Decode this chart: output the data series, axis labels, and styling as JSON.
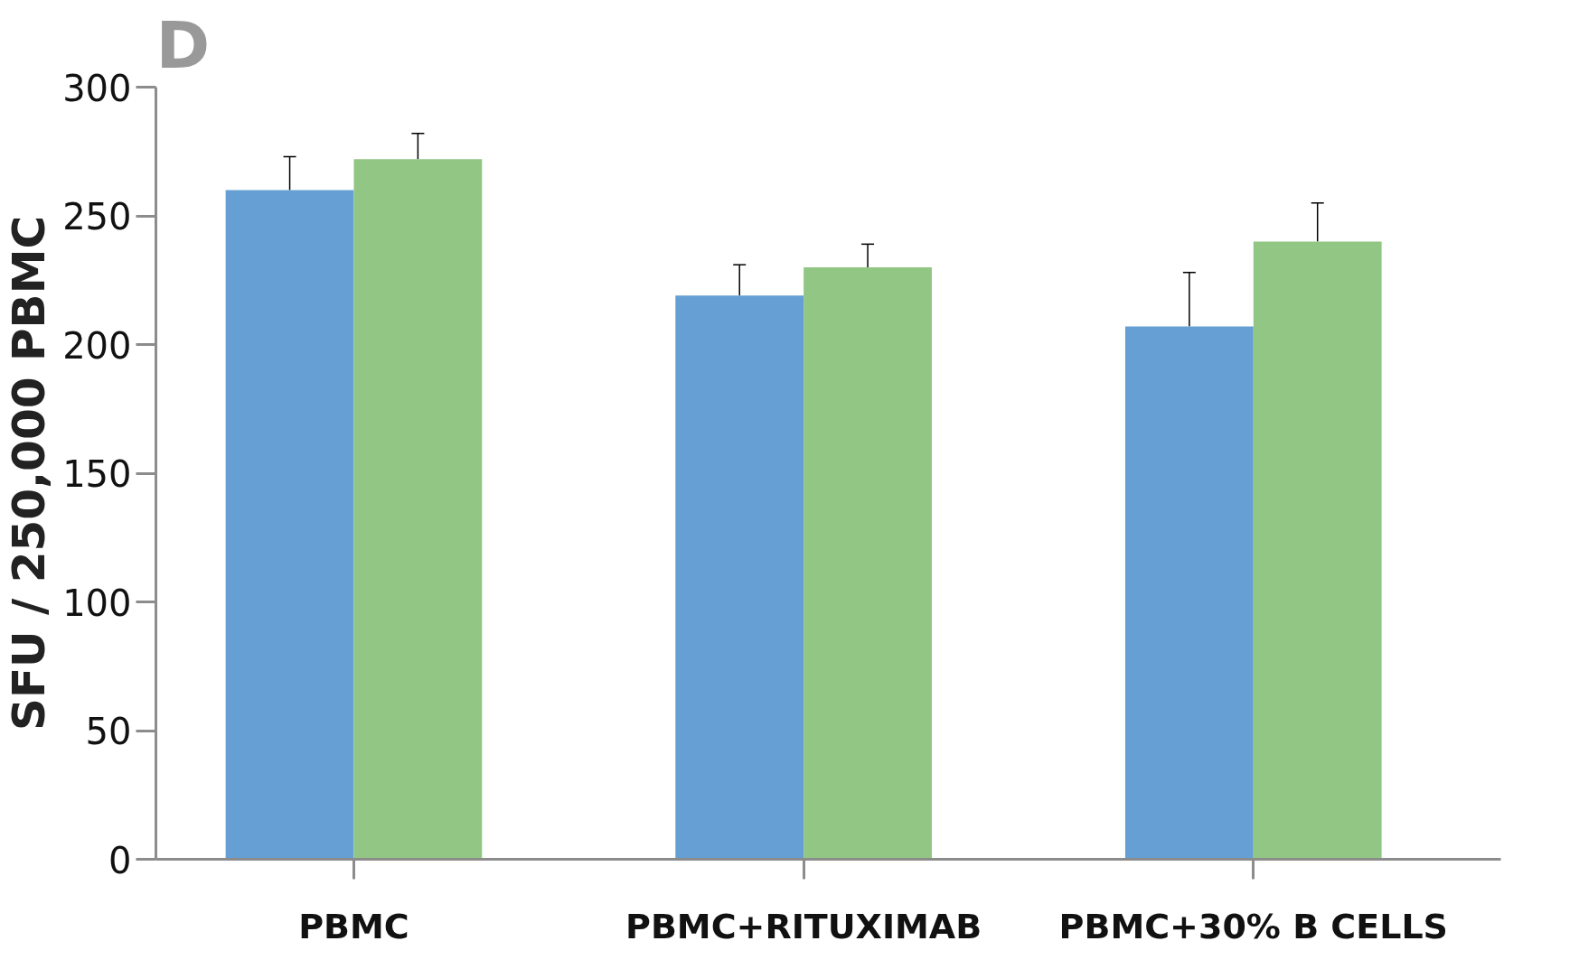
{
  "chart_data": {
    "type": "bar",
    "title": "D",
    "ylabel": "SFU / 250,000 PBMC",
    "categories": [
      "PBMC",
      "PBMC+RITUXIMAB",
      "PBMC+30% B CELLS"
    ],
    "series": [
      {
        "color": "#659fd3",
        "values": [
          260,
          219,
          207
        ],
        "errors": [
          [
            260,
            273
          ],
          [
            219,
            231
          ],
          [
            207,
            228
          ]
        ]
      },
      {
        "color": "#92c685",
        "values": [
          272,
          230,
          240
        ],
        "errors": [
          [
            272,
            282
          ],
          [
            230,
            239
          ],
          [
            240,
            255
          ]
        ]
      }
    ],
    "ylim": [
      0,
      300
    ],
    "yticks": [
      0,
      50,
      100,
      150,
      200,
      250,
      300
    ],
    "grid": false
  }
}
